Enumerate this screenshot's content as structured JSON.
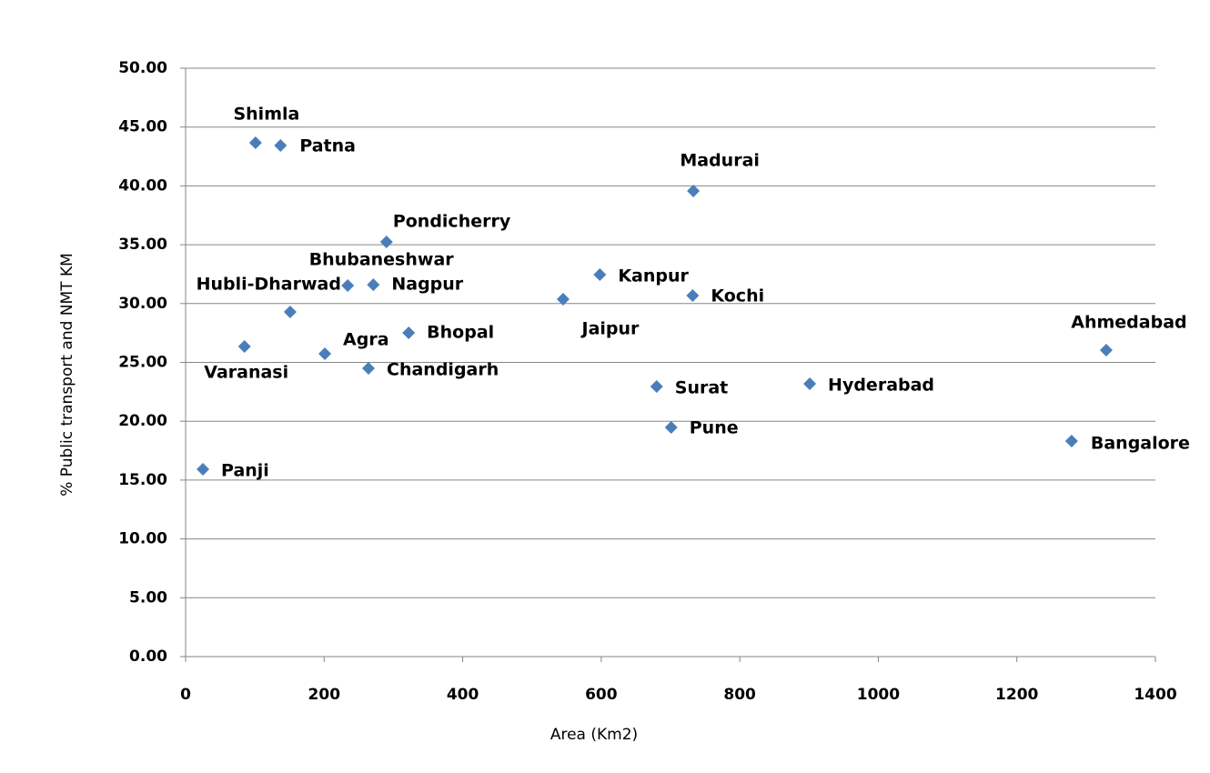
{
  "chart_data": {
    "type": "scatter",
    "x_label": "Area (Km2)",
    "y_label": "% Public transport and NMT KM",
    "labels": [
      "Shimla",
      "Patna",
      "Madurai",
      "Pondicherry",
      "Bhubaneshwar",
      "Nagpur",
      "Kanpur",
      "Jaipur",
      "Kochi",
      "Hubli-Dharwad",
      "Varanasi",
      "Agra",
      "Bhopal",
      "Chandigarh",
      "Ahmedabad",
      "Surat",
      "Hyderabad",
      "Pune",
      "Bangalore",
      "Panji"
    ],
    "x": [
      101,
      137,
      733,
      290,
      234,
      271,
      598,
      545,
      732,
      151,
      85,
      201,
      322,
      264,
      1329,
      680,
      901,
      701,
      1279,
      25
    ],
    "values": [
      43.66,
      43.43,
      39.57,
      35.24,
      31.53,
      31.6,
      32.46,
      30.37,
      30.68,
      29.29,
      26.35,
      25.73,
      27.51,
      24.5,
      26.04,
      22.95,
      23.18,
      19.47,
      18.32,
      15.92
    ],
    "color": "#4a7ebb",
    "xlim": [
      0,
      1400
    ],
    "xticks": [
      0,
      200,
      400,
      600,
      800,
      1000,
      1200,
      1400
    ],
    "ylim": [
      0,
      50
    ],
    "yticks": [
      {
        "value": 0,
        "label": "0.00"
      },
      {
        "value": 5,
        "label": "5.00"
      },
      {
        "value": 10,
        "label": "10.00"
      },
      {
        "value": 15,
        "label": "15.00"
      },
      {
        "value": 20,
        "label": "20.00"
      },
      {
        "value": 25,
        "label": "25.00"
      },
      {
        "value": 30,
        "label": "30.00"
      },
      {
        "value": 35,
        "label": "35.00"
      },
      {
        "value": 40,
        "label": "40.00"
      },
      {
        "value": 45,
        "label": "45.00"
      },
      {
        "value": 50,
        "label": "50.00"
      }
    ],
    "grid": true
  }
}
